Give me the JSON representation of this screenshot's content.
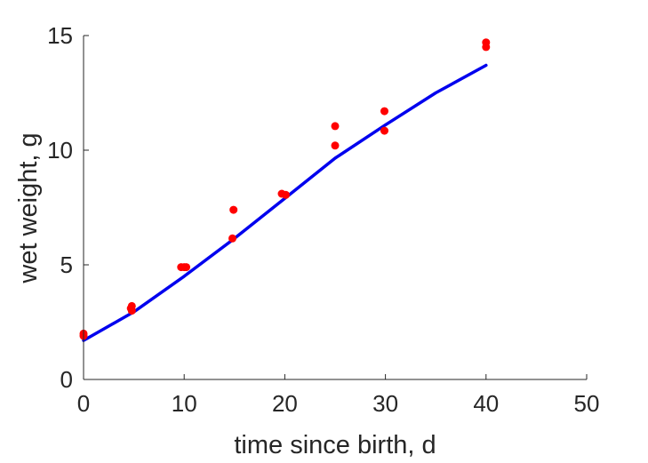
{
  "chart_data": {
    "type": "scatter",
    "title": "",
    "xlabel": "time since birth, d",
    "ylabel": "wet weight, g",
    "xlim": [
      0,
      50
    ],
    "ylim": [
      0,
      15
    ],
    "xticks": [
      "0",
      "10",
      "20",
      "30",
      "40",
      "50"
    ],
    "yticks": [
      "0",
      "5",
      "10",
      "15"
    ],
    "grid": false,
    "legend": "none",
    "series": [
      {
        "kind": "points",
        "color": "#ff0000",
        "points": [
          [
            0,
            1.9
          ],
          [
            0,
            2.0
          ],
          [
            4.7,
            3.1
          ],
          [
            4.8,
            3.2
          ],
          [
            4.8,
            3.0
          ],
          [
            9.7,
            4.9
          ],
          [
            10.2,
            4.9
          ],
          [
            10.0,
            4.9
          ],
          [
            14.8,
            6.15
          ],
          [
            14.9,
            7.4
          ],
          [
            19.7,
            8.1
          ],
          [
            20.1,
            8.05
          ],
          [
            25.0,
            10.2
          ],
          [
            25.0,
            11.05
          ],
          [
            29.9,
            10.85
          ],
          [
            29.9,
            11.7
          ],
          [
            40.0,
            14.5
          ],
          [
            40.0,
            14.7
          ]
        ]
      },
      {
        "kind": "line",
        "color": "#0000ee",
        "points": [
          [
            0,
            1.7
          ],
          [
            5,
            2.95
          ],
          [
            10,
            4.5
          ],
          [
            15,
            6.15
          ],
          [
            20,
            7.9
          ],
          [
            25,
            9.65
          ],
          [
            30,
            11.1
          ],
          [
            35,
            12.5
          ],
          [
            40,
            13.7
          ]
        ]
      }
    ]
  }
}
